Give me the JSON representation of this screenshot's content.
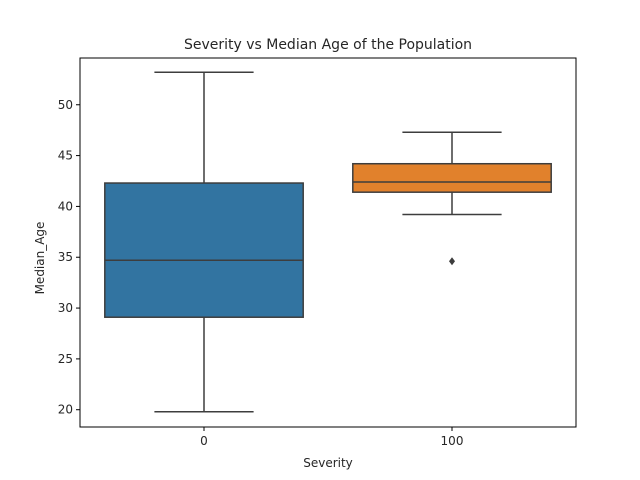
{
  "chart_data": {
    "type": "box",
    "title": "Severity vs Median Age of the Population",
    "xlabel": "Severity",
    "ylabel": "Median_Age",
    "categories": [
      "0",
      "100"
    ],
    "ylim": [
      18.3,
      54.6
    ],
    "yticks": [
      20,
      25,
      30,
      35,
      40,
      45,
      50
    ],
    "grid": false,
    "boxes": [
      {
        "category": "0",
        "whisker_low": 19.8,
        "q1": 29.1,
        "median": 34.7,
        "q3": 42.3,
        "whisker_high": 53.2,
        "outliers": [],
        "color": "#3274a1"
      },
      {
        "category": "100",
        "whisker_low": 39.2,
        "q1": 41.4,
        "median": 42.4,
        "q3": 44.2,
        "whisker_high": 47.3,
        "outliers": [
          34.6
        ],
        "color": "#e1812c"
      }
    ]
  }
}
